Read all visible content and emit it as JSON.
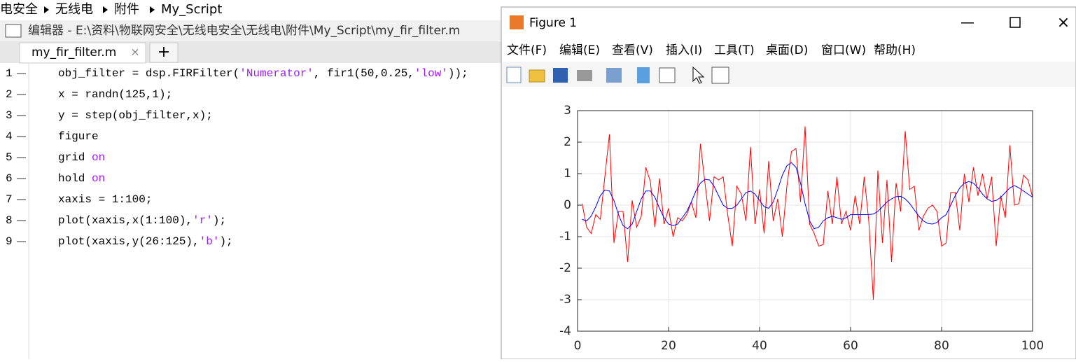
{
  "breadcrumb": [
    "电安全",
    "无线电",
    "附件",
    "My_Script"
  ],
  "editor": {
    "title": "编辑器 - E:\\资料\\物联网安全\\无线电安全\\无线电\\附件\\My_Script\\my_fir_filter.m",
    "tab": "my_fir_filter.m",
    "lines": [
      {
        "number": 1,
        "code": [
          "obj_filter = dsp.FIRFilter(",
          {
            "text": "'Numerator'",
            "color": "#a020f0"
          },
          ", fir1(50,0.25,",
          {
            "text": "'low'",
            "color": "#a020f0"
          },
          "));"
        ]
      },
      {
        "number": 2,
        "code": [
          "x = randn(125,1);"
        ]
      },
      {
        "number": 3,
        "code": [
          "y = step(obj_filter,x);"
        ]
      },
      {
        "number": 4,
        "code": [
          "figure"
        ]
      },
      {
        "number": 5,
        "code": [
          "grid ",
          {
            "text": "on",
            "color": "#a020f0"
          }
        ]
      },
      {
        "number": 6,
        "code": [
          "hold ",
          {
            "text": "on",
            "color": "#a020f0"
          }
        ]
      },
      {
        "number": 7,
        "code": [
          "xaxis = 1:100;"
        ]
      },
      {
        "number": 8,
        "code": [
          "plot(xaxis,x(1:100),",
          {
            "text": "'r'",
            "color": "#a020f0"
          },
          ");"
        ]
      },
      {
        "number": 9,
        "code": [
          "plot(xaxis,y(26:125),",
          {
            "text": "'b'",
            "color": "#a020f0"
          },
          ");"
        ]
      }
    ]
  },
  "figure_window": {
    "title": "Figure 1",
    "menu": [
      "文件(F)",
      "编辑(E)",
      "查看(V)",
      "插入(I)",
      "工具(T)",
      "桌面(D)",
      "窗口(W)",
      "帮助(H)"
    ]
  },
  "chart_data": {
    "type": "line",
    "grid": true,
    "x": [
      1,
      2,
      3,
      4,
      5,
      6,
      7,
      8,
      9,
      10,
      11,
      12,
      13,
      14,
      15,
      16,
      17,
      18,
      19,
      20,
      21,
      22,
      23,
      24,
      25,
      26,
      27,
      28,
      29,
      30,
      31,
      32,
      33,
      34,
      35,
      36,
      37,
      38,
      39,
      40,
      41,
      42,
      43,
      44,
      45,
      46,
      47,
      48,
      49,
      50,
      51,
      52,
      53,
      54,
      55,
      56,
      57,
      58,
      59,
      60,
      61,
      62,
      63,
      64,
      65,
      66,
      67,
      68,
      69,
      70,
      71,
      72,
      73,
      74,
      75,
      76,
      77,
      78,
      79,
      80,
      81,
      82,
      83,
      84,
      85,
      86,
      87,
      88,
      89,
      90,
      91,
      92,
      93,
      94,
      95,
      96,
      97,
      98,
      99,
      100
    ],
    "series": [
      {
        "color": "#ff0000",
        "values": [
          0.05,
          -0.7,
          -0.9,
          -0.3,
          -0.45,
          0.9,
          2.25,
          -1.2,
          -0.2,
          -0.2,
          -1.8,
          0.15,
          -0.7,
          -0.35,
          1.2,
          0.75,
          -0.7,
          0.85,
          -0.6,
          -0.1,
          -1.0,
          -0.4,
          -0.5,
          -0.3,
          0.1,
          -0.4,
          1.95,
          0.7,
          -0.5,
          0.9,
          0.8,
          0.9,
          -0.3,
          -1.3,
          0.6,
          0.35,
          -0.5,
          1.85,
          -0.6,
          0.5,
          -0.9,
          1.4,
          -0.5,
          0.2,
          -1.0,
          0.6,
          1.7,
          1.8,
          0.1,
          2.5,
          -0.6,
          -0.9,
          -1.3,
          -1.25,
          0.45,
          -0.6,
          0.9,
          -0.6,
          -0.2,
          -0.8,
          0.3,
          -0.6,
          0.9,
          -0.5,
          -3,
          1.1,
          -1.2,
          0.8,
          -1.8,
          0.7,
          -0.2,
          2.35,
          0.5,
          0.6,
          -0.8,
          -0.35,
          -0.1,
          0.0,
          -0.2,
          -1.3,
          -1.2,
          0.4,
          0.4,
          -0.8,
          1.0,
          0.1,
          1.2,
          0.3,
          1.0,
          0.2,
          0.9,
          -1.3,
          0.3,
          -0.4,
          1.9,
          0.0,
          0.05,
          0.95,
          0.8,
          0.25
        ]
      },
      {
        "color": "#0000ff",
        "values": [
          -0.45,
          -0.5,
          -0.35,
          -0.05,
          0.3,
          0.48,
          0.45,
          0.15,
          -0.3,
          -0.65,
          -0.75,
          -0.6,
          -0.2,
          0.2,
          0.45,
          0.45,
          0.25,
          -0.1,
          -0.4,
          -0.6,
          -0.65,
          -0.6,
          -0.4,
          -0.2,
          0.1,
          0.45,
          0.7,
          0.82,
          0.8,
          0.6,
          0.3,
          0,
          -0.1,
          -0.1,
          0,
          0.2,
          0.4,
          0.45,
          0.35,
          0.15,
          -0.05,
          -0.1,
          0.1,
          0.5,
          0.95,
          1.25,
          1.35,
          1.2,
          0.7,
          0.05,
          -0.5,
          -0.75,
          -0.7,
          -0.5,
          -0.4,
          -0.35,
          -0.4,
          -0.45,
          -0.4,
          -0.3,
          -0.3,
          -0.3,
          -0.3,
          -0.3,
          -0.28,
          -0.2,
          -0.05,
          0.1,
          0.2,
          0.27,
          0.28,
          0.2,
          0.05,
          -0.15,
          -0.35,
          -0.5,
          -0.58,
          -0.6,
          -0.55,
          -0.4,
          -0.3,
          0.0,
          0.3,
          0.55,
          0.7,
          0.75,
          0.7,
          0.55,
          0.35,
          0.2,
          0.12,
          0.15,
          0.25,
          0.4,
          0.55,
          0.62,
          0.55,
          0.45,
          0.35,
          0.25
        ]
      }
    ],
    "xlim": [
      0,
      100
    ],
    "xticks": [
      0,
      20,
      40,
      60,
      80,
      100
    ],
    "ylim": [
      -4,
      3
    ],
    "yticks": [
      -4,
      -3,
      -2,
      -1,
      0,
      1,
      2,
      3
    ]
  }
}
